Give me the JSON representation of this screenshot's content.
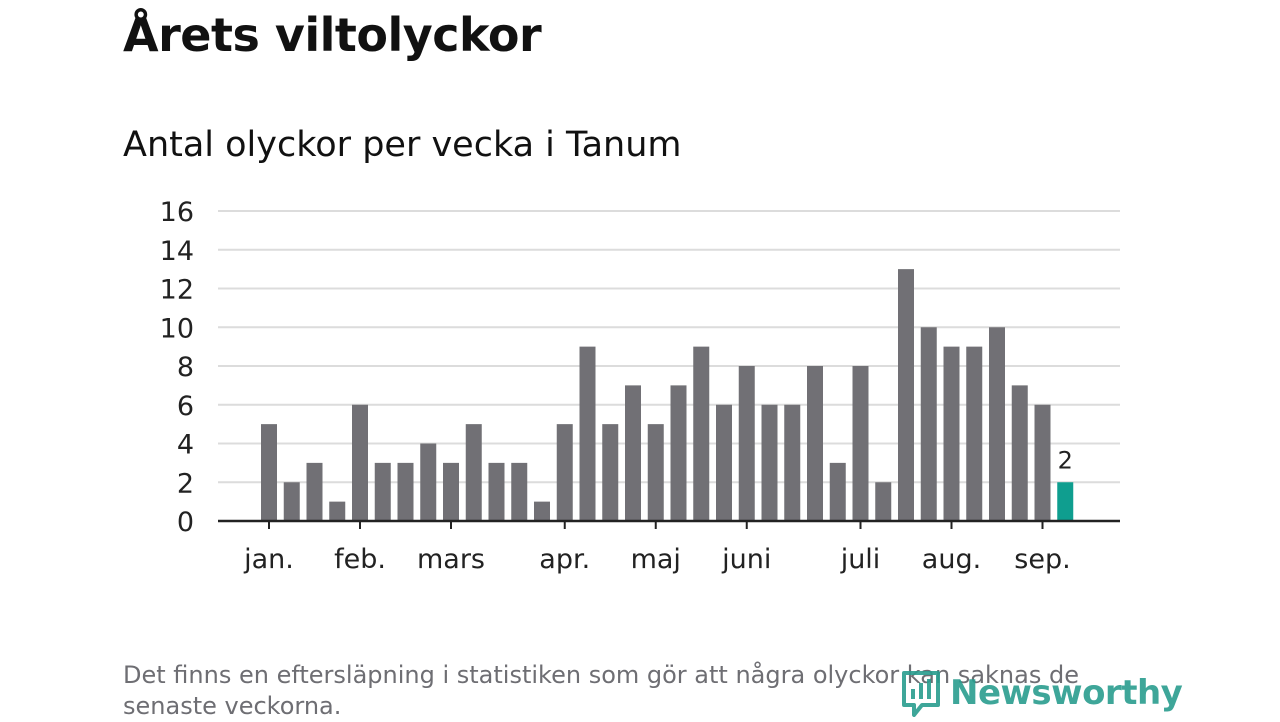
{
  "header": {
    "title": "Årets viltolyckor",
    "subtitle": "Antal olyckor per vecka i Tanum"
  },
  "footer": {
    "note": "Det finns en eftersläpning i statistiken som gör att några olyckor kan saknas de senaste veckorna.",
    "brand": "Newsworthy"
  },
  "colors": {
    "bar": "#717075",
    "highlight": "#0f9e8f",
    "grid": "#dcdcdc",
    "axis": "#222222",
    "brand": "#2a9d8f"
  },
  "chart_data": {
    "type": "bar",
    "title": "Antal olyckor per vecka i Tanum",
    "xlabel": "",
    "ylabel": "",
    "ylim": [
      0,
      16
    ],
    "yticks": [
      0,
      2,
      4,
      6,
      8,
      10,
      12,
      14,
      16
    ],
    "grid": true,
    "values": [
      5,
      2,
      3,
      1,
      6,
      3,
      3,
      4,
      3,
      5,
      3,
      3,
      1,
      5,
      9,
      5,
      7,
      5,
      7,
      9,
      6,
      8,
      6,
      6,
      8,
      3,
      8,
      2,
      13,
      10,
      9,
      9,
      10,
      7,
      6,
      2
    ],
    "highlight_index": 35,
    "highlight_label": "2",
    "month_labels": [
      {
        "label": "jan.",
        "bar": 0
      },
      {
        "label": "feb.",
        "bar": 4
      },
      {
        "label": "mars",
        "bar": 8
      },
      {
        "label": "apr.",
        "bar": 13
      },
      {
        "label": "maj",
        "bar": 17
      },
      {
        "label": "juni",
        "bar": 21
      },
      {
        "label": "juli",
        "bar": 26
      },
      {
        "label": "aug.",
        "bar": 30
      },
      {
        "label": "sep.",
        "bar": 34
      }
    ]
  }
}
